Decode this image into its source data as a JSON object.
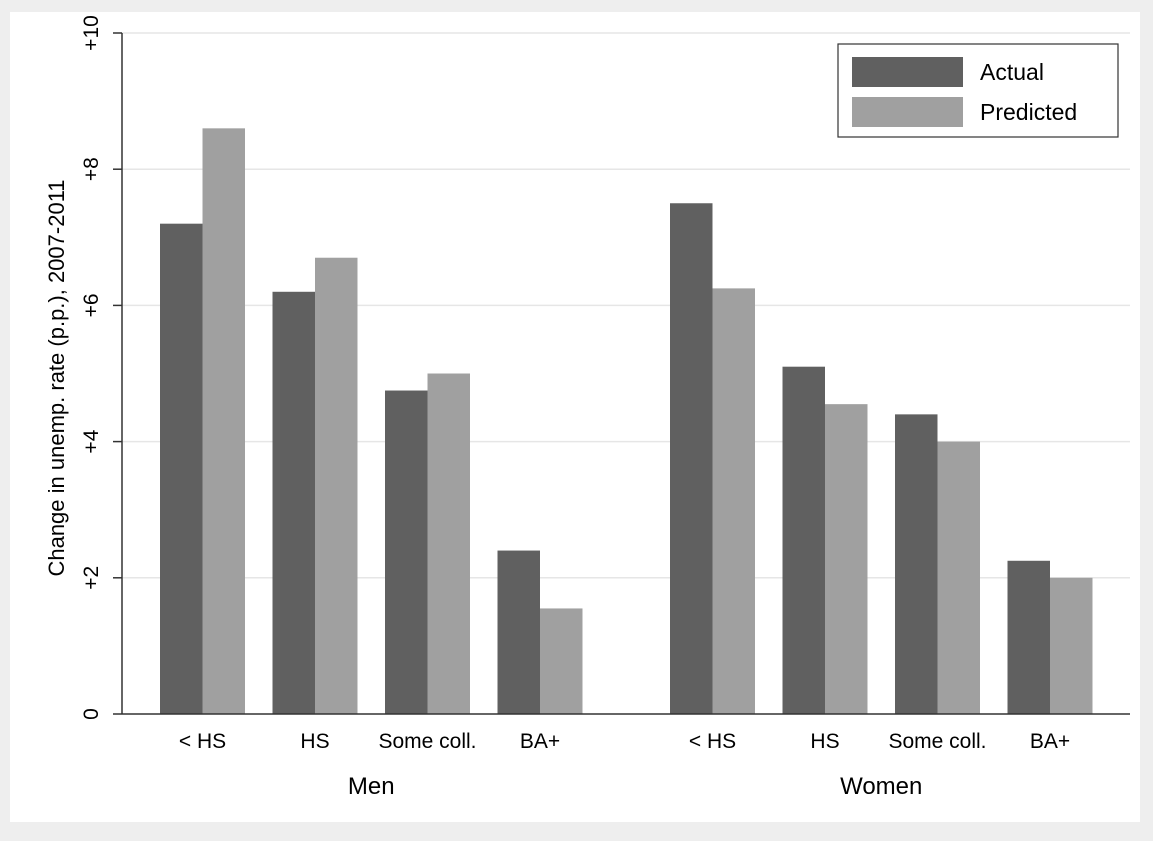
{
  "chart_data": {
    "type": "bar",
    "ylabel": "Change in unemp. rate (p.p.), 2007-2011",
    "ylim": [
      0,
      10
    ],
    "yticks": [
      {
        "value": 0,
        "label": "0"
      },
      {
        "value": 2,
        "label": "+2"
      },
      {
        "value": 4,
        "label": "+4"
      },
      {
        "value": 6,
        "label": "+6"
      },
      {
        "value": 8,
        "label": "+8"
      },
      {
        "value": 10,
        "label": "+10"
      }
    ],
    "grid": true,
    "legend_position": "top-right",
    "groups": [
      {
        "label": "Men",
        "categories": [
          "< HS",
          "HS",
          "Some coll.",
          "BA+"
        ]
      },
      {
        "label": "Women",
        "categories": [
          "< HS",
          "HS",
          "Some coll.",
          "BA+"
        ]
      }
    ],
    "series": [
      {
        "name": "Actual",
        "color": "#606060",
        "values": [
          7.2,
          6.2,
          4.75,
          2.4,
          7.5,
          5.1,
          4.4,
          2.25
        ]
      },
      {
        "name": "Predicted",
        "color": "#a0a0a0",
        "values": [
          8.6,
          6.7,
          5.0,
          1.55,
          6.25,
          4.55,
          4.0,
          2.0
        ]
      }
    ]
  }
}
